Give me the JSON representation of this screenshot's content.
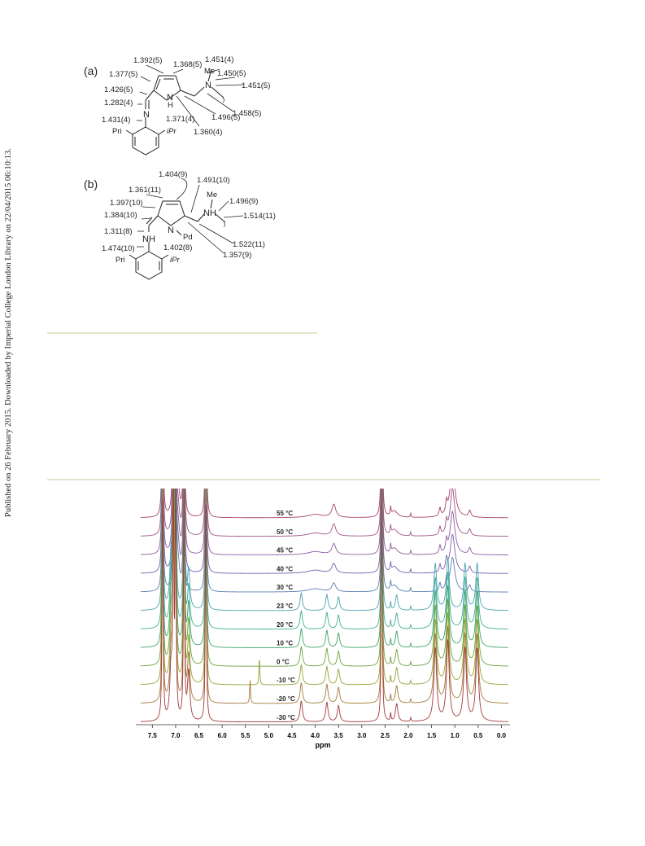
{
  "sidebar": {
    "text": "Published on 26 February 2015. Downloaded by Imperial College London Library on 22/04/2015 06:10:13."
  },
  "structure_a": {
    "label": "(a)",
    "bonds": [
      "1.392(5)",
      "1.368(5)",
      "1.451(4)",
      "1.450(5)",
      "1.451(5)",
      "1.377(5)",
      "1.426(5)",
      "1.282(4)",
      "1.431(4)",
      "1.371(4)",
      "1.496(5)",
      "1.458(5)",
      "1.360(4)"
    ],
    "atoms": {
      "me": "Me",
      "n_amine": "N",
      "nh": "N",
      "h": "H",
      "n_imine": "N",
      "pri": "Pri",
      "ipr": "iPr"
    }
  },
  "structure_b": {
    "label": "(b)",
    "bonds": [
      "1.404(9)",
      "1.491(10)",
      "1.361(11)",
      "1.496(9)",
      "1.397(10)",
      "1.384(10)",
      "1.514(11)",
      "1.311(8)",
      "1.474(10)",
      "1.402(8)",
      "1.522(11)",
      "1.357(9)"
    ],
    "atoms": {
      "me": "Me",
      "nh_amine": "NH",
      "nh_imine": "NH",
      "n_pd": "N",
      "pd": "Pd",
      "pri": "Pri",
      "ipr": "iPr"
    }
  },
  "chart_data": {
    "type": "line",
    "xlabel": "ppm",
    "xlim": [
      7.75,
      -0.15
    ],
    "x_ticks": [
      "7.5",
      "7.0",
      "6.5",
      "6.0",
      "5.5",
      "5.0",
      "4.5",
      "4.0",
      "3.5",
      "3.0",
      "2.5",
      "2.0",
      "1.5",
      "1.0",
      "0.5",
      "0.0"
    ],
    "series": [
      {
        "name": "55 °C",
        "color": "#a8416b"
      },
      {
        "name": "50 °C",
        "color": "#a05389"
      },
      {
        "name": "45 °C",
        "color": "#8c5b9f"
      },
      {
        "name": "40 °C",
        "color": "#7560ab"
      },
      {
        "name": "30 °C",
        "color": "#5b7fb0"
      },
      {
        "name": "23 °C",
        "color": "#4aa3b0"
      },
      {
        "name": "20 °C",
        "color": "#3fae95"
      },
      {
        "name": "10 °C",
        "color": "#3ea36a"
      },
      {
        "name": "0 °C",
        "color": "#6aa33e"
      },
      {
        "name": "-10 °C",
        "color": "#97a33a"
      },
      {
        "name": "-20 °C",
        "color": "#a37a36"
      },
      {
        "name": "-30 °C",
        "color": "#a33a3a"
      }
    ]
  }
}
